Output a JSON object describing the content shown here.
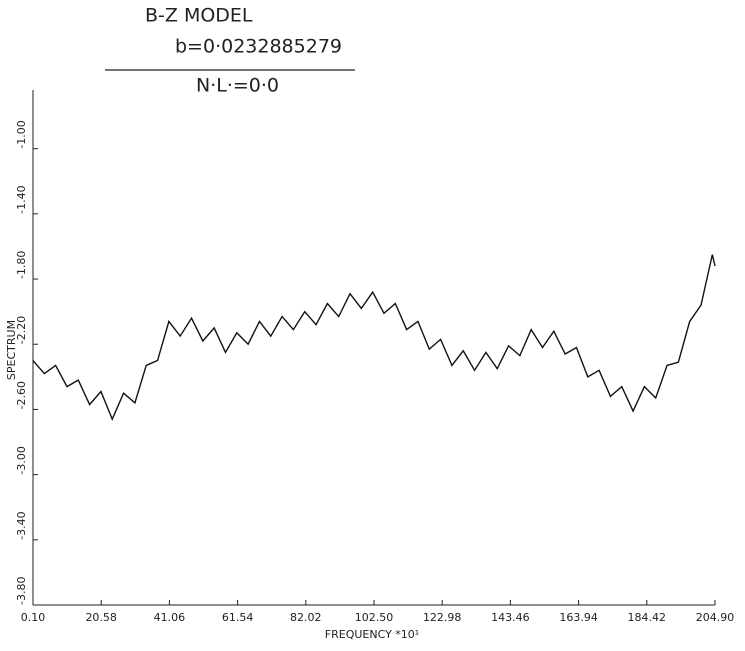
{
  "chart_data": {
    "type": "line",
    "title": "B-Z MODEL",
    "subtitle": "b=0·0232885279",
    "annotation": "N·L·=0·0",
    "x_label": "FREQUENCY   *10¹",
    "y_label": "SPECTRUM",
    "xlim": [
      0.1,
      204.9
    ],
    "ylim": [
      -3.8,
      -0.64
    ],
    "xticks": [
      {
        "value": 0.1,
        "label": "0.10"
      },
      20.58,
      41.06,
      61.54,
      82.02,
      {
        "value": 102.5,
        "label": "102.50"
      },
      122.98,
      143.46,
      163.94,
      184.42,
      {
        "value": 204.9,
        "label": "204.90"
      }
    ],
    "yticks": [
      {
        "value": -1.0,
        "label": "-1.00"
      },
      {
        "value": -1.4,
        "label": "-1.40"
      },
      {
        "value": -1.8,
        "label": "-1.80"
      },
      {
        "value": -2.2,
        "label": "-2.20"
      },
      {
        "value": -2.6,
        "label": "-2.60"
      },
      {
        "value": -3.0,
        "label": "-3.00"
      },
      {
        "value": -3.4,
        "label": "-3.40"
      },
      {
        "value": -3.8,
        "label": "-3.80"
      }
    ],
    "x": [
      0.1,
      3.5,
      6.9,
      10.3,
      13.7,
      17.1,
      20.5,
      23.9,
      27.3,
      30.7,
      34.1,
      37.5,
      40.9,
      44.3,
      47.7,
      51.1,
      54.5,
      57.9,
      61.3,
      64.7,
      68.1,
      71.5,
      74.9,
      78.3,
      81.7,
      85.1,
      88.5,
      91.9,
      95.3,
      98.7,
      102.1,
      105.5,
      108.9,
      112.3,
      115.7,
      119.1,
      122.5,
      125.9,
      129.3,
      132.7,
      136.1,
      139.5,
      142.9,
      146.3,
      149.7,
      153.1,
      156.5,
      159.9,
      163.3,
      166.7,
      170.1,
      173.5,
      176.9,
      180.3,
      183.7,
      187.1,
      190.5,
      193.9,
      197.3,
      200.7,
      204.1,
      204.9
    ],
    "series": [
      {
        "color": "#111111",
        "values": [
          -2.3,
          -2.38,
          -2.33,
          -2.46,
          -2.42,
          -2.57,
          -2.49,
          -2.66,
          -2.5,
          -2.56,
          -2.33,
          -2.3,
          -2.06,
          -2.15,
          -2.04,
          -2.18,
          -2.1,
          -2.25,
          -2.13,
          -2.2,
          -2.06,
          -2.15,
          -2.03,
          -2.11,
          -2.0,
          -2.08,
          -1.95,
          -2.03,
          -1.89,
          -1.98,
          -1.88,
          -2.01,
          -1.95,
          -2.11,
          -2.06,
          -2.23,
          -2.17,
          -2.33,
          -2.24,
          -2.36,
          -2.25,
          -2.35,
          -2.21,
          -2.27,
          -2.11,
          -2.22,
          -2.12,
          -2.26,
          -2.22,
          -2.4,
          -2.36,
          -2.52,
          -2.46,
          -2.61,
          -2.46,
          -2.53,
          -2.33,
          -2.31,
          -2.06,
          -1.96,
          -1.65,
          -1.72
        ]
      }
    ]
  }
}
